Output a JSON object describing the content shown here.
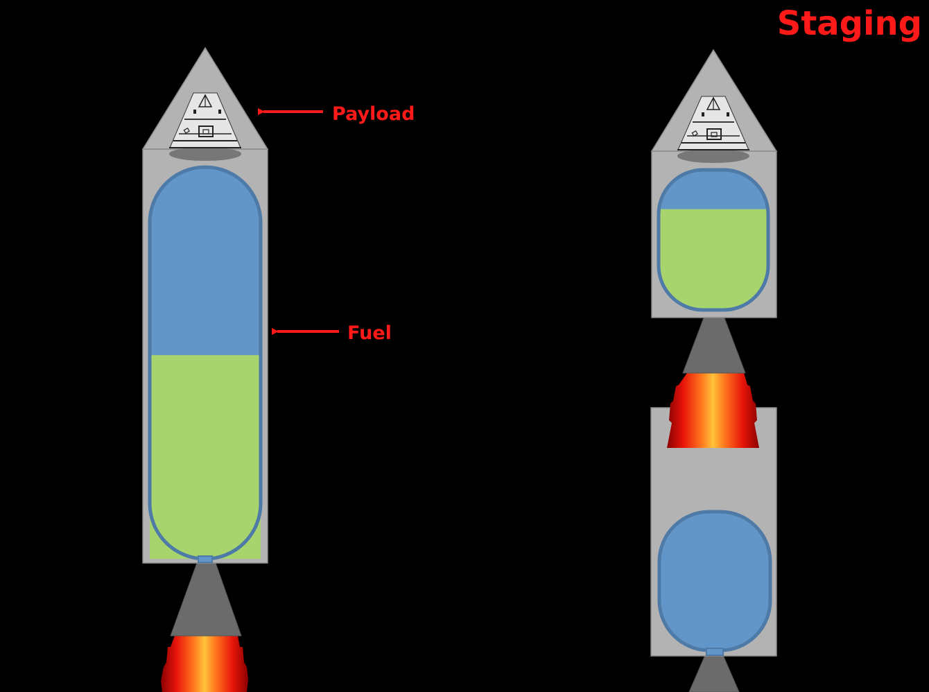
{
  "title": "Staging",
  "labels": {
    "payload": "Payload",
    "fuel": "Fuel"
  },
  "colors": {
    "background": "#000000",
    "annotation": "#ff1a1a",
    "body": "#b3b3b3",
    "body_stroke": "#8c8c8c",
    "tank_outline": "#4d7aa6",
    "empty_tank": "#6396c8",
    "fuel": "#a7d46c",
    "nozzle": "#6b6b6b",
    "capsule": "#e6e6e6"
  },
  "rockets": {
    "single_stage": {
      "fuel_fraction": 0.52
    },
    "multi_stage": {
      "upper_stage_fuel_fraction": 0.72,
      "lower_stage_fuel_fraction": 0.0
    }
  }
}
